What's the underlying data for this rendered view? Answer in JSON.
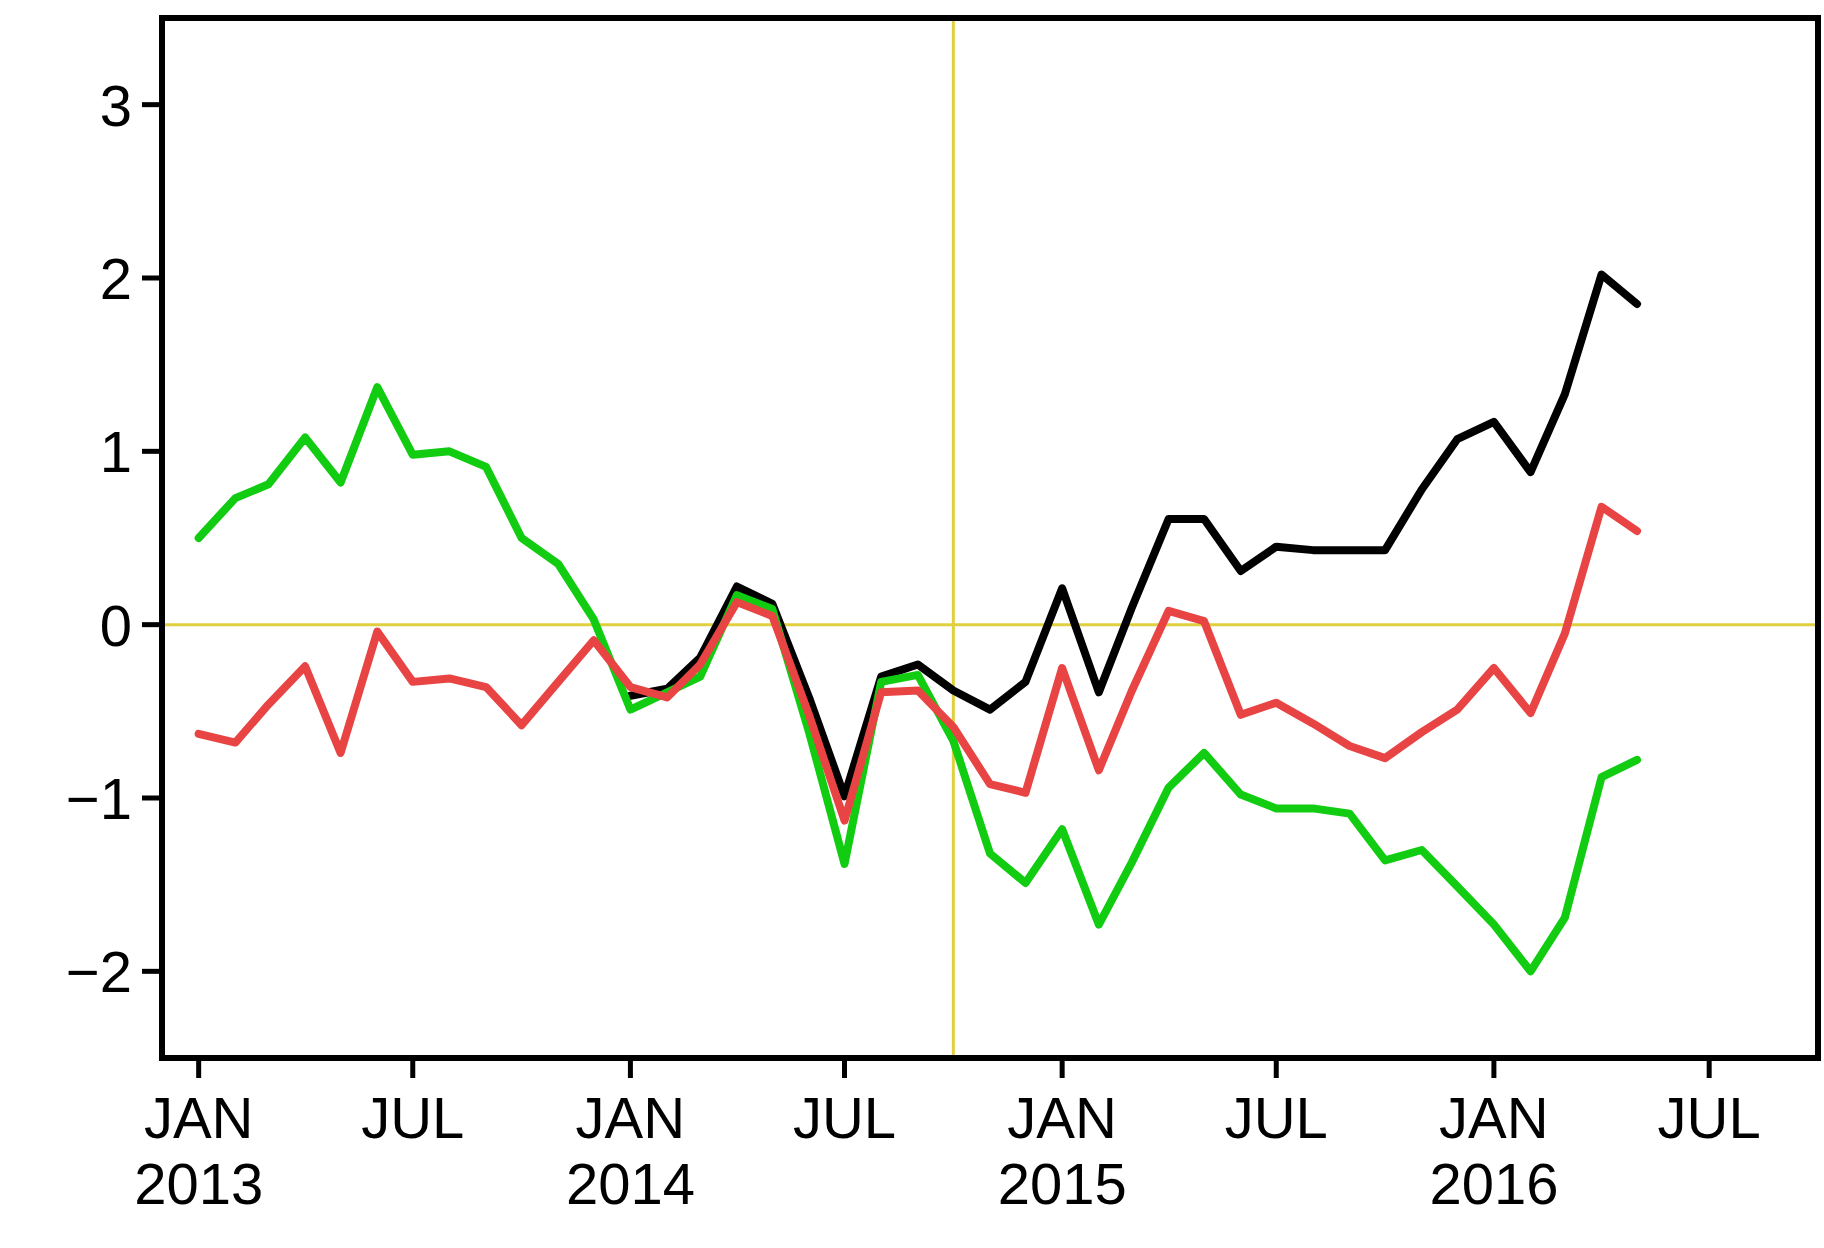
{
  "chart_data": {
    "type": "line",
    "x": [
      "2013-01",
      "2013-02",
      "2013-03",
      "2013-04",
      "2013-05",
      "2013-06",
      "2013-07",
      "2013-08",
      "2013-09",
      "2013-10",
      "2013-11",
      "2013-12",
      "2014-01",
      "2014-02",
      "2014-03",
      "2014-04",
      "2014-05",
      "2014-06",
      "2014-07",
      "2014-08",
      "2014-09",
      "2014-10",
      "2014-11",
      "2014-12",
      "2015-01",
      "2015-02",
      "2015-03",
      "2015-04",
      "2015-05",
      "2015-06",
      "2015-07",
      "2015-08",
      "2015-09",
      "2015-10",
      "2015-11",
      "2015-12",
      "2016-01",
      "2016-02",
      "2016-03",
      "2016-04",
      "2016-05"
    ],
    "series": [
      {
        "color": "#000000",
        "values": [
          null,
          null,
          null,
          null,
          null,
          null,
          null,
          null,
          null,
          null,
          null,
          null,
          -0.41,
          -0.37,
          -0.19,
          0.22,
          0.12,
          -0.42,
          -0.99,
          -0.3,
          -0.23,
          -0.38,
          -0.49,
          -0.33,
          0.21,
          -0.39,
          0.1,
          0.61,
          0.61,
          0.31,
          0.45,
          0.43,
          0.43,
          0.43,
          0.78,
          1.07,
          1.17,
          0.88,
          1.33,
          2.02,
          1.85
        ]
      },
      {
        "color": "#11cc11",
        "values": [
          0.5,
          0.73,
          0.81,
          1.08,
          0.82,
          1.37,
          0.98,
          1.0,
          0.91,
          0.5,
          0.35,
          0.03,
          -0.49,
          -0.39,
          -0.3,
          0.17,
          0.09,
          -0.62,
          -1.38,
          -0.33,
          -0.29,
          -0.67,
          -1.32,
          -1.49,
          -1.18,
          -1.73,
          -1.37,
          -0.94,
          -0.74,
          -0.98,
          -1.06,
          -1.06,
          -1.09,
          -1.36,
          -1.3,
          -1.51,
          -1.73,
          -2.0,
          -1.69,
          -0.88,
          -0.78
        ]
      },
      {
        "color": "#e84444",
        "values": [
          -0.63,
          -0.68,
          -0.46,
          -0.24,
          -0.74,
          -0.04,
          -0.33,
          -0.31,
          -0.36,
          -0.58,
          -0.33,
          -0.09,
          -0.36,
          -0.42,
          -0.23,
          0.13,
          0.05,
          -0.52,
          -1.13,
          -0.39,
          -0.38,
          -0.59,
          -0.92,
          -0.97,
          -0.25,
          -0.84,
          -0.38,
          0.08,
          0.02,
          -0.52,
          -0.45,
          -0.57,
          -0.7,
          -0.77,
          -0.62,
          -0.49,
          -0.25,
          -0.51,
          -0.05,
          0.68,
          0.54
        ]
      }
    ],
    "xlim": [
      "2012-12",
      "2016-10"
    ],
    "xticks": [
      {
        "value": "2013-01",
        "label": "JAN\n2013"
      },
      {
        "value": "2013-07",
        "label": "JUL"
      },
      {
        "value": "2014-01",
        "label": "JAN\n2014"
      },
      {
        "value": "2014-07",
        "label": "JUL"
      },
      {
        "value": "2015-01",
        "label": "JAN\n2015"
      },
      {
        "value": "2015-07",
        "label": "JUL"
      },
      {
        "value": "2016-01",
        "label": "JAN\n2016"
      },
      {
        "value": "2016-07",
        "label": "JUL"
      }
    ],
    "ylim": [
      -2.5,
      3.5
    ],
    "yticks": [
      {
        "value": -2,
        "label": "−2"
      },
      {
        "value": -1,
        "label": "−1"
      },
      0,
      1,
      2,
      3
    ],
    "ref_lines": [
      {
        "axis": "y",
        "value": 0,
        "color": "#e0d040"
      },
      {
        "axis": "x",
        "value": "2014-10",
        "color": "#e0d040"
      }
    ],
    "grid": false,
    "marker": "none",
    "line_style": "solid"
  }
}
